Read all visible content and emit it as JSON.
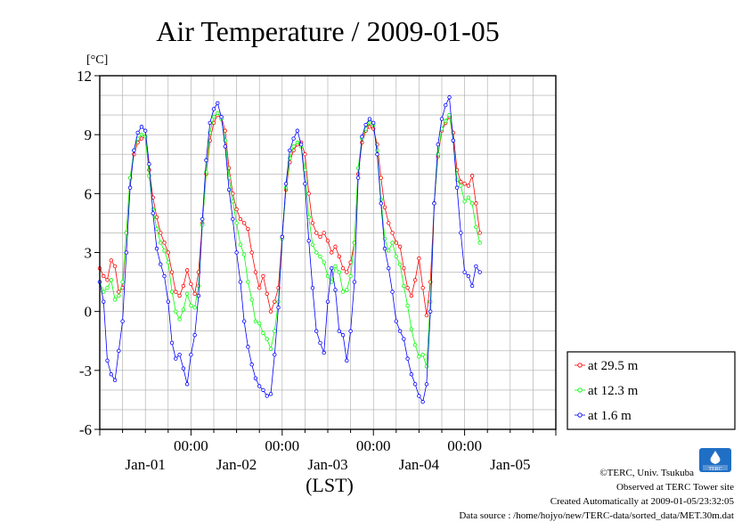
{
  "chart_data": {
    "type": "line",
    "title": "Air Temperature / 2009-01-05",
    "y_unit": "[°C]",
    "xlabel": "(LST)",
    "ylim": [
      -6,
      12
    ],
    "y_ticks": [
      -6,
      -3,
      0,
      3,
      6,
      9,
      12
    ],
    "x_range_hours": [
      0,
      120
    ],
    "x_time_ticks": [
      {
        "hour": 24,
        "label": "00:00"
      },
      {
        "hour": 48,
        "label": "00:00"
      },
      {
        "hour": 72,
        "label": "00:00"
      },
      {
        "hour": 96,
        "label": "00:00"
      }
    ],
    "x_date_ticks": [
      {
        "hour": 12,
        "label": "Jan-01"
      },
      {
        "hour": 36,
        "label": "Jan-02"
      },
      {
        "hour": 60,
        "label": "Jan-03"
      },
      {
        "hour": 84,
        "label": "Jan-04"
      },
      {
        "hour": 108,
        "label": "Jan-05"
      }
    ],
    "grid": true,
    "legend_position": "right",
    "series": [
      {
        "name": "at 29.5 m",
        "color": "#ff0000",
        "points": [
          [
            0,
            2.2
          ],
          [
            1,
            1.8
          ],
          [
            2,
            1.6
          ],
          [
            3,
            2.6
          ],
          [
            4,
            2.3
          ],
          [
            5,
            1.0
          ],
          [
            6,
            1.2
          ],
          [
            7,
            4.0
          ],
          [
            8,
            6.8
          ],
          [
            9,
            8.0
          ],
          [
            10,
            8.6
          ],
          [
            11,
            8.8
          ],
          [
            12,
            8.9
          ],
          [
            13,
            7.2
          ],
          [
            14,
            5.8
          ],
          [
            15,
            4.8
          ],
          [
            16,
            4.0
          ],
          [
            17,
            3.5
          ],
          [
            18,
            3.0
          ],
          [
            19,
            2.0
          ],
          [
            20,
            1.0
          ],
          [
            21,
            0.8
          ],
          [
            22,
            1.3
          ],
          [
            23,
            2.1
          ],
          [
            24,
            1.4
          ],
          [
            25,
            0.9
          ],
          [
            26,
            2.0
          ],
          [
            27,
            4.5
          ],
          [
            28,
            7.0
          ],
          [
            29,
            8.7
          ],
          [
            30,
            9.6
          ],
          [
            31,
            10.0
          ],
          [
            32,
            9.9
          ],
          [
            33,
            9.2
          ],
          [
            34,
            7.3
          ],
          [
            35,
            6.0
          ],
          [
            36,
            5.2
          ],
          [
            37,
            4.7
          ],
          [
            38,
            4.5
          ],
          [
            39,
            4.2
          ],
          [
            40,
            3.0
          ],
          [
            41,
            2.0
          ],
          [
            42,
            1.2
          ],
          [
            43,
            1.8
          ],
          [
            44,
            0.9
          ],
          [
            45,
            0.0
          ],
          [
            46,
            0.5
          ],
          [
            47,
            1.2
          ],
          [
            48,
            3.8
          ],
          [
            49,
            6.2
          ],
          [
            50,
            7.6
          ],
          [
            51,
            8.2
          ],
          [
            52,
            8.5
          ],
          [
            53,
            8.6
          ],
          [
            54,
            8.0
          ],
          [
            55,
            6.0
          ],
          [
            56,
            4.5
          ],
          [
            57,
            4.0
          ],
          [
            58,
            3.8
          ],
          [
            59,
            4.0
          ],
          [
            60,
            3.6
          ],
          [
            61,
            3.0
          ],
          [
            62,
            3.3
          ],
          [
            63,
            2.8
          ],
          [
            64,
            2.2
          ],
          [
            65,
            2.0
          ],
          [
            66,
            2.5
          ],
          [
            67,
            3.5
          ],
          [
            68,
            7.0
          ],
          [
            69,
            8.6
          ],
          [
            70,
            9.2
          ],
          [
            71,
            9.4
          ],
          [
            72,
            9.3
          ],
          [
            73,
            8.5
          ],
          [
            74,
            6.8
          ],
          [
            75,
            5.3
          ],
          [
            76,
            4.5
          ],
          [
            77,
            4.0
          ],
          [
            78,
            3.5
          ],
          [
            79,
            3.3
          ],
          [
            80,
            2.2
          ],
          [
            81,
            1.2
          ],
          [
            82,
            0.8
          ],
          [
            83,
            1.6
          ],
          [
            84,
            2.7
          ],
          [
            85,
            1.2
          ],
          [
            86,
            -0.2
          ],
          [
            87,
            1.5
          ],
          [
            88,
            5.5
          ],
          [
            89,
            7.9
          ],
          [
            90,
            9.2
          ],
          [
            91,
            9.6
          ],
          [
            92,
            9.9
          ],
          [
            93,
            9.1
          ],
          [
            94,
            7.2
          ],
          [
            95,
            6.6
          ],
          [
            96,
            6.5
          ],
          [
            97,
            6.4
          ],
          [
            98,
            6.9
          ],
          [
            99,
            5.5
          ],
          [
            100,
            4.0
          ]
        ]
      },
      {
        "name": "at 12.3 m",
        "color": "#00ff00",
        "points": [
          [
            0,
            1.5
          ],
          [
            1,
            1.0
          ],
          [
            2,
            1.2
          ],
          [
            3,
            1.6
          ],
          [
            4,
            0.6
          ],
          [
            5,
            0.8
          ],
          [
            6,
            1.5
          ],
          [
            7,
            4.0
          ],
          [
            8,
            6.8
          ],
          [
            9,
            8.2
          ],
          [
            10,
            8.8
          ],
          [
            11,
            9.0
          ],
          [
            12,
            8.9
          ],
          [
            13,
            6.9
          ],
          [
            14,
            5.2
          ],
          [
            15,
            4.2
          ],
          [
            16,
            3.5
          ],
          [
            17,
            3.1
          ],
          [
            18,
            2.5
          ],
          [
            19,
            1.0
          ],
          [
            20,
            0.0
          ],
          [
            21,
            -0.4
          ],
          [
            22,
            0.1
          ],
          [
            23,
            0.9
          ],
          [
            24,
            0.3
          ],
          [
            25,
            0.2
          ],
          [
            26,
            1.3
          ],
          [
            27,
            4.4
          ],
          [
            28,
            7.1
          ],
          [
            29,
            9.1
          ],
          [
            30,
            9.9
          ],
          [
            31,
            10.1
          ],
          [
            32,
            9.8
          ],
          [
            33,
            8.7
          ],
          [
            34,
            6.8
          ],
          [
            35,
            5.6
          ],
          [
            36,
            4.5
          ],
          [
            37,
            3.4
          ],
          [
            38,
            2.9
          ],
          [
            39,
            1.5
          ],
          [
            40,
            0.6
          ],
          [
            41,
            -0.5
          ],
          [
            42,
            -0.6
          ],
          [
            43,
            -1.1
          ],
          [
            44,
            -1.4
          ],
          [
            45,
            -1.9
          ],
          [
            46,
            -1.0
          ],
          [
            47,
            0.5
          ],
          [
            48,
            3.7
          ],
          [
            49,
            6.3
          ],
          [
            50,
            7.8
          ],
          [
            51,
            8.4
          ],
          [
            52,
            8.6
          ],
          [
            53,
            8.4
          ],
          [
            54,
            7.2
          ],
          [
            55,
            4.8
          ],
          [
            56,
            3.4
          ],
          [
            57,
            3.0
          ],
          [
            58,
            2.8
          ],
          [
            59,
            2.5
          ],
          [
            60,
            1.8
          ],
          [
            61,
            1.5
          ],
          [
            62,
            2.3
          ],
          [
            63,
            2.0
          ],
          [
            64,
            1.0
          ],
          [
            65,
            1.1
          ],
          [
            66,
            1.8
          ],
          [
            67,
            3.5
          ],
          [
            68,
            7.3
          ],
          [
            69,
            8.8
          ],
          [
            70,
            9.3
          ],
          [
            71,
            9.6
          ],
          [
            72,
            9.5
          ],
          [
            73,
            8.2
          ],
          [
            74,
            5.7
          ],
          [
            75,
            3.7
          ],
          [
            76,
            3.1
          ],
          [
            77,
            3.5
          ],
          [
            78,
            2.8
          ],
          [
            79,
            2.4
          ],
          [
            80,
            1.3
          ],
          [
            81,
            0.3
          ],
          [
            82,
            -0.9
          ],
          [
            83,
            -1.7
          ],
          [
            84,
            -2.3
          ],
          [
            85,
            -2.2
          ],
          [
            86,
            -2.8
          ],
          [
            87,
            0.5
          ],
          [
            88,
            5.5
          ],
          [
            89,
            8.0
          ],
          [
            90,
            9.3
          ],
          [
            91,
            9.7
          ],
          [
            92,
            10.0
          ],
          [
            93,
            8.7
          ],
          [
            94,
            6.7
          ],
          [
            95,
            6.4
          ],
          [
            96,
            5.6
          ],
          [
            97,
            5.8
          ],
          [
            98,
            5.5
          ],
          [
            99,
            4.3
          ],
          [
            100,
            3.5
          ]
        ]
      },
      {
        "name": "at 1.6 m",
        "color": "#0000ff",
        "points": [
          [
            0,
            1.5
          ],
          [
            1,
            0.5
          ],
          [
            2,
            -2.5
          ],
          [
            3,
            -3.2
          ],
          [
            4,
            -3.5
          ],
          [
            5,
            -2.0
          ],
          [
            6,
            -0.5
          ],
          [
            7,
            3.0
          ],
          [
            8,
            6.3
          ],
          [
            9,
            8.2
          ],
          [
            10,
            9.1
          ],
          [
            11,
            9.4
          ],
          [
            12,
            9.2
          ],
          [
            13,
            7.5
          ],
          [
            14,
            5.0
          ],
          [
            15,
            3.2
          ],
          [
            16,
            2.4
          ],
          [
            17,
            1.8
          ],
          [
            18,
            0.5
          ],
          [
            19,
            -1.6
          ],
          [
            20,
            -2.4
          ],
          [
            21,
            -2.2
          ],
          [
            22,
            -2.9
          ],
          [
            23,
            -3.7
          ],
          [
            24,
            -2.2
          ],
          [
            25,
            -1.2
          ],
          [
            26,
            0.8
          ],
          [
            27,
            4.7
          ],
          [
            28,
            7.7
          ],
          [
            29,
            9.6
          ],
          [
            30,
            10.3
          ],
          [
            31,
            10.6
          ],
          [
            32,
            9.9
          ],
          [
            33,
            8.4
          ],
          [
            34,
            6.2
          ],
          [
            35,
            4.7
          ],
          [
            36,
            3.0
          ],
          [
            37,
            1.5
          ],
          [
            38,
            -0.5
          ],
          [
            39,
            -1.8
          ],
          [
            40,
            -2.7
          ],
          [
            41,
            -3.4
          ],
          [
            42,
            -3.8
          ],
          [
            43,
            -4.0
          ],
          [
            44,
            -4.3
          ],
          [
            45,
            -4.2
          ],
          [
            46,
            -2.2
          ],
          [
            47,
            0.2
          ],
          [
            48,
            3.8
          ],
          [
            49,
            6.5
          ],
          [
            50,
            8.2
          ],
          [
            51,
            8.8
          ],
          [
            52,
            9.2
          ],
          [
            53,
            8.5
          ],
          [
            54,
            6.5
          ],
          [
            55,
            3.6
          ],
          [
            56,
            1.2
          ],
          [
            57,
            -1.0
          ],
          [
            58,
            -1.6
          ],
          [
            59,
            -2.1
          ],
          [
            60,
            0.5
          ],
          [
            61,
            2.2
          ],
          [
            62,
            1.1
          ],
          [
            63,
            -1.0
          ],
          [
            64,
            -1.2
          ],
          [
            65,
            -2.5
          ],
          [
            66,
            -1.0
          ],
          [
            67,
            1.5
          ],
          [
            68,
            6.8
          ],
          [
            69,
            8.9
          ],
          [
            70,
            9.5
          ],
          [
            71,
            9.8
          ],
          [
            72,
            9.6
          ],
          [
            73,
            8.0
          ],
          [
            74,
            5.5
          ],
          [
            75,
            3.2
          ],
          [
            76,
            2.2
          ],
          [
            77,
            1.0
          ],
          [
            78,
            -0.5
          ],
          [
            79,
            -1.0
          ],
          [
            80,
            -1.4
          ],
          [
            81,
            -2.4
          ],
          [
            82,
            -3.2
          ],
          [
            83,
            -3.7
          ],
          [
            84,
            -4.3
          ],
          [
            85,
            -4.6
          ],
          [
            86,
            -3.7
          ],
          [
            87,
            0.0
          ],
          [
            88,
            5.5
          ],
          [
            89,
            8.5
          ],
          [
            90,
            9.8
          ],
          [
            91,
            10.5
          ],
          [
            92,
            10.9
          ],
          [
            93,
            8.7
          ],
          [
            94,
            6.3
          ],
          [
            95,
            4.0
          ],
          [
            96,
            2.0
          ],
          [
            97,
            1.8
          ],
          [
            98,
            1.3
          ],
          [
            99,
            2.3
          ],
          [
            100,
            2.0
          ]
        ]
      }
    ]
  },
  "footer": {
    "copyright": "©TERC, Univ. Tsukuba",
    "observed": "Observed at TERC Tower site",
    "created": "Created Automatically at 2009-01-05/23:32:05",
    "source": "Data source : /home/hojyo/new/TERC-data/sorted_data/MET.30m.dat"
  },
  "logo": {
    "label": "TERC",
    "color": "#1f6fc5"
  }
}
